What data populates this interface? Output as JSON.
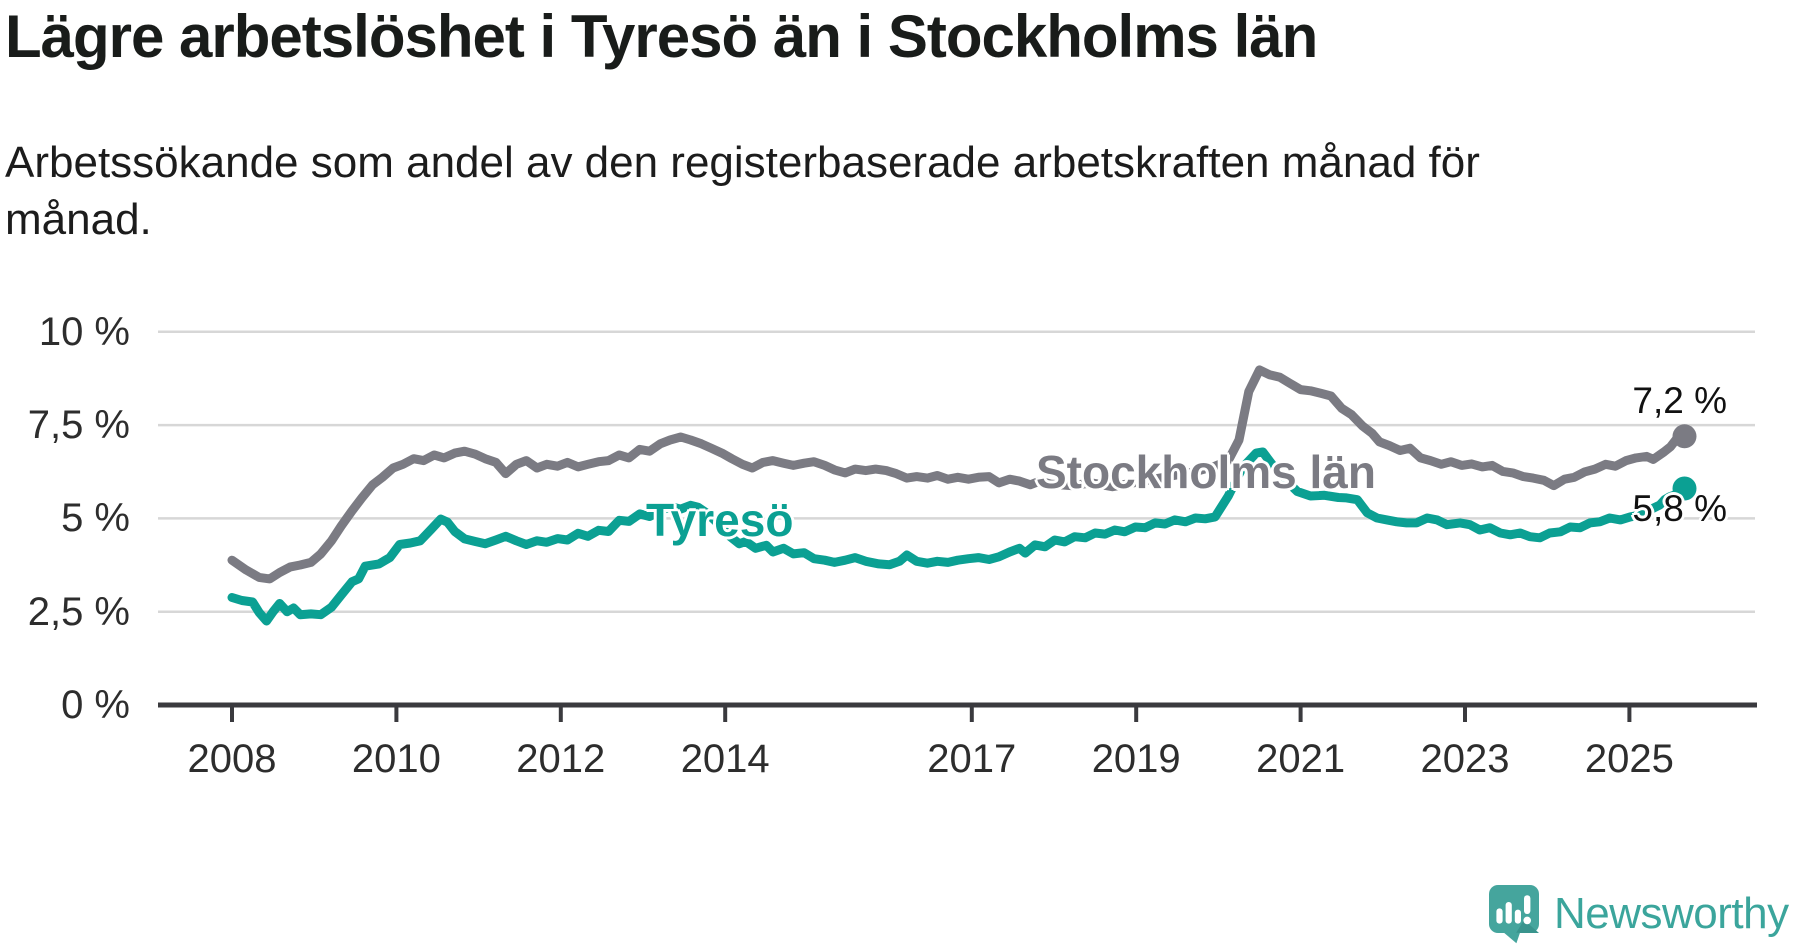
{
  "header": {
    "title": "Lägre arbetslöshet i Tyresö än i Stockholms län",
    "subtitle": "Arbetssökande som andel av den registerbaserade arbetskraften månad för månad."
  },
  "footer": {
    "brand": "Newsworthy"
  },
  "colors": {
    "tyreso": "#0ba093",
    "stockholm": "#7b7b83",
    "gridline": "#d7d7d7",
    "axis": "#3a3a3e",
    "text": "#191c1a",
    "brand_teal": "#3ba59c"
  },
  "chart_data": {
    "type": "line",
    "title": "Lägre arbetslöshet i Tyresö än i Stockholms län",
    "subtitle": "Arbetssökande som andel av den registerbaserade arbetskraften månad för månad.",
    "unit": "%",
    "grid": true,
    "legend_position": "inline-labels",
    "x_axis": {
      "ticks": [
        2008,
        2010,
        2012,
        2014,
        2017,
        2019,
        2021,
        2023,
        2025
      ],
      "range": [
        2007.1,
        2026.5
      ]
    },
    "y_axis": {
      "range": [
        0,
        10
      ],
      "ticks": [
        {
          "value": 10,
          "label": "10 %"
        },
        {
          "value": 7.5,
          "label": "7,5 %"
        },
        {
          "value": 5,
          "label": "5 %"
        },
        {
          "value": 2.5,
          "label": "2,5 %"
        },
        {
          "value": 0,
          "label": "0 %"
        }
      ]
    },
    "series": [
      {
        "name": "Tyresö",
        "label": "Tyresö",
        "color": "#0ba093",
        "end_label": "5,8 %",
        "end_value": 5.8,
        "points": [
          [
            2008.0,
            2.88
          ],
          [
            2008.12,
            2.8
          ],
          [
            2008.25,
            2.76
          ],
          [
            2008.33,
            2.48
          ],
          [
            2008.42,
            2.25
          ],
          [
            2008.5,
            2.5
          ],
          [
            2008.58,
            2.72
          ],
          [
            2008.67,
            2.5
          ],
          [
            2008.75,
            2.6
          ],
          [
            2008.83,
            2.42
          ],
          [
            2008.96,
            2.44
          ],
          [
            2009.08,
            2.42
          ],
          [
            2009.21,
            2.62
          ],
          [
            2009.33,
            2.95
          ],
          [
            2009.46,
            3.3
          ],
          [
            2009.54,
            3.38
          ],
          [
            2009.62,
            3.72
          ],
          [
            2009.79,
            3.78
          ],
          [
            2009.92,
            3.95
          ],
          [
            2010.04,
            4.3
          ],
          [
            2010.17,
            4.34
          ],
          [
            2010.29,
            4.4
          ],
          [
            2010.42,
            4.7
          ],
          [
            2010.54,
            4.98
          ],
          [
            2010.62,
            4.9
          ],
          [
            2010.71,
            4.65
          ],
          [
            2010.83,
            4.45
          ],
          [
            2010.96,
            4.38
          ],
          [
            2011.08,
            4.32
          ],
          [
            2011.21,
            4.42
          ],
          [
            2011.33,
            4.52
          ],
          [
            2011.46,
            4.4
          ],
          [
            2011.58,
            4.3
          ],
          [
            2011.71,
            4.4
          ],
          [
            2011.83,
            4.36
          ],
          [
            2011.96,
            4.46
          ],
          [
            2012.08,
            4.42
          ],
          [
            2012.21,
            4.6
          ],
          [
            2012.33,
            4.52
          ],
          [
            2012.46,
            4.68
          ],
          [
            2012.58,
            4.65
          ],
          [
            2012.71,
            4.95
          ],
          [
            2012.83,
            4.92
          ],
          [
            2012.96,
            5.12
          ],
          [
            2013.08,
            5.05
          ],
          [
            2013.21,
            5.2
          ],
          [
            2013.33,
            5.32
          ],
          [
            2013.46,
            5.25
          ],
          [
            2013.58,
            5.35
          ],
          [
            2013.67,
            5.3
          ],
          [
            2013.79,
            5.12
          ],
          [
            2013.92,
            4.85
          ],
          [
            2014.04,
            4.55
          ],
          [
            2014.17,
            4.32
          ],
          [
            2014.25,
            4.38
          ],
          [
            2014.37,
            4.2
          ],
          [
            2014.5,
            4.28
          ],
          [
            2014.58,
            4.1
          ],
          [
            2014.71,
            4.2
          ],
          [
            2014.83,
            4.05
          ],
          [
            2014.96,
            4.08
          ],
          [
            2015.08,
            3.92
          ],
          [
            2015.21,
            3.88
          ],
          [
            2015.33,
            3.82
          ],
          [
            2015.46,
            3.88
          ],
          [
            2015.58,
            3.95
          ],
          [
            2015.71,
            3.85
          ],
          [
            2015.87,
            3.78
          ],
          [
            2016.0,
            3.76
          ],
          [
            2016.12,
            3.85
          ],
          [
            2016.21,
            4.02
          ],
          [
            2016.33,
            3.85
          ],
          [
            2016.46,
            3.8
          ],
          [
            2016.58,
            3.85
          ],
          [
            2016.71,
            3.82
          ],
          [
            2016.83,
            3.88
          ],
          [
            2016.96,
            3.92
          ],
          [
            2017.08,
            3.95
          ],
          [
            2017.21,
            3.9
          ],
          [
            2017.33,
            3.97
          ],
          [
            2017.46,
            4.1
          ],
          [
            2017.58,
            4.2
          ],
          [
            2017.65,
            4.07
          ],
          [
            2017.77,
            4.29
          ],
          [
            2017.89,
            4.24
          ],
          [
            2018.01,
            4.42
          ],
          [
            2018.13,
            4.37
          ],
          [
            2018.25,
            4.51
          ],
          [
            2018.38,
            4.48
          ],
          [
            2018.5,
            4.61
          ],
          [
            2018.62,
            4.58
          ],
          [
            2018.74,
            4.69
          ],
          [
            2018.86,
            4.64
          ],
          [
            2018.99,
            4.77
          ],
          [
            2019.11,
            4.75
          ],
          [
            2019.23,
            4.88
          ],
          [
            2019.35,
            4.85
          ],
          [
            2019.47,
            4.96
          ],
          [
            2019.6,
            4.91
          ],
          [
            2019.72,
            5.01
          ],
          [
            2019.84,
            4.99
          ],
          [
            2019.96,
            5.04
          ],
          [
            2020.12,
            5.6
          ],
          [
            2020.29,
            6.35
          ],
          [
            2020.46,
            6.75
          ],
          [
            2020.54,
            6.78
          ],
          [
            2020.67,
            6.4
          ],
          [
            2020.83,
            6.0
          ],
          [
            2020.96,
            5.72
          ],
          [
            2021.12,
            5.6
          ],
          [
            2021.29,
            5.62
          ],
          [
            2021.46,
            5.56
          ],
          [
            2021.56,
            5.55
          ],
          [
            2021.69,
            5.5
          ],
          [
            2021.81,
            5.15
          ],
          [
            2021.93,
            5.01
          ],
          [
            2022.05,
            4.96
          ],
          [
            2022.17,
            4.91
          ],
          [
            2022.29,
            4.88
          ],
          [
            2022.41,
            4.88
          ],
          [
            2022.54,
            5.01
          ],
          [
            2022.66,
            4.96
          ],
          [
            2022.78,
            4.83
          ],
          [
            2022.94,
            4.88
          ],
          [
            2023.06,
            4.83
          ],
          [
            2023.18,
            4.69
          ],
          [
            2023.3,
            4.75
          ],
          [
            2023.43,
            4.61
          ],
          [
            2023.55,
            4.56
          ],
          [
            2023.67,
            4.61
          ],
          [
            2023.79,
            4.51
          ],
          [
            2023.91,
            4.48
          ],
          [
            2024.03,
            4.61
          ],
          [
            2024.16,
            4.64
          ],
          [
            2024.28,
            4.77
          ],
          [
            2024.4,
            4.75
          ],
          [
            2024.52,
            4.88
          ],
          [
            2024.64,
            4.91
          ],
          [
            2024.76,
            5.01
          ],
          [
            2024.89,
            4.96
          ],
          [
            2025.01,
            5.04
          ],
          [
            2025.13,
            5.09
          ],
          [
            2025.25,
            5.23
          ],
          [
            2025.37,
            5.36
          ],
          [
            2025.43,
            5.5
          ],
          [
            2025.49,
            5.58
          ],
          [
            2025.55,
            5.63
          ],
          [
            2025.61,
            5.58
          ],
          [
            2025.67,
            5.8
          ]
        ]
      },
      {
        "name": "Stockholms län",
        "label": "Stockholms län",
        "color": "#7b7b83",
        "end_label": "7,2 %",
        "end_value": 7.2,
        "points": [
          [
            2008.0,
            3.88
          ],
          [
            2008.17,
            3.62
          ],
          [
            2008.33,
            3.42
          ],
          [
            2008.46,
            3.38
          ],
          [
            2008.58,
            3.55
          ],
          [
            2008.71,
            3.7
          ],
          [
            2008.83,
            3.75
          ],
          [
            2008.96,
            3.82
          ],
          [
            2009.08,
            4.05
          ],
          [
            2009.21,
            4.4
          ],
          [
            2009.33,
            4.8
          ],
          [
            2009.46,
            5.2
          ],
          [
            2009.58,
            5.55
          ],
          [
            2009.71,
            5.9
          ],
          [
            2009.83,
            6.1
          ],
          [
            2009.96,
            6.35
          ],
          [
            2010.08,
            6.45
          ],
          [
            2010.21,
            6.6
          ],
          [
            2010.33,
            6.55
          ],
          [
            2010.46,
            6.7
          ],
          [
            2010.58,
            6.62
          ],
          [
            2010.71,
            6.75
          ],
          [
            2010.83,
            6.8
          ],
          [
            2010.96,
            6.72
          ],
          [
            2011.08,
            6.6
          ],
          [
            2011.21,
            6.5
          ],
          [
            2011.33,
            6.2
          ],
          [
            2011.46,
            6.45
          ],
          [
            2011.58,
            6.55
          ],
          [
            2011.71,
            6.35
          ],
          [
            2011.83,
            6.45
          ],
          [
            2011.96,
            6.4
          ],
          [
            2012.08,
            6.5
          ],
          [
            2012.21,
            6.38
          ],
          [
            2012.33,
            6.45
          ],
          [
            2012.46,
            6.52
          ],
          [
            2012.58,
            6.55
          ],
          [
            2012.71,
            6.7
          ],
          [
            2012.83,
            6.62
          ],
          [
            2012.96,
            6.85
          ],
          [
            2013.08,
            6.8
          ],
          [
            2013.21,
            7.0
          ],
          [
            2013.33,
            7.1
          ],
          [
            2013.46,
            7.18
          ],
          [
            2013.58,
            7.1
          ],
          [
            2013.71,
            7.0
          ],
          [
            2013.83,
            6.88
          ],
          [
            2013.96,
            6.75
          ],
          [
            2014.08,
            6.6
          ],
          [
            2014.21,
            6.45
          ],
          [
            2014.33,
            6.35
          ],
          [
            2014.46,
            6.5
          ],
          [
            2014.58,
            6.55
          ],
          [
            2014.71,
            6.48
          ],
          [
            2014.83,
            6.42
          ],
          [
            2014.96,
            6.48
          ],
          [
            2015.08,
            6.52
          ],
          [
            2015.21,
            6.42
          ],
          [
            2015.33,
            6.3
          ],
          [
            2015.46,
            6.22
          ],
          [
            2015.58,
            6.32
          ],
          [
            2015.71,
            6.28
          ],
          [
            2015.83,
            6.32
          ],
          [
            2015.96,
            6.28
          ],
          [
            2016.08,
            6.2
          ],
          [
            2016.21,
            6.08
          ],
          [
            2016.33,
            6.12
          ],
          [
            2016.46,
            6.08
          ],
          [
            2016.58,
            6.15
          ],
          [
            2016.71,
            6.05
          ],
          [
            2016.83,
            6.1
          ],
          [
            2016.96,
            6.05
          ],
          [
            2017.08,
            6.1
          ],
          [
            2017.21,
            6.12
          ],
          [
            2017.33,
            5.95
          ],
          [
            2017.46,
            6.05
          ],
          [
            2017.58,
            6.0
          ],
          [
            2017.71,
            5.9
          ],
          [
            2017.83,
            6.0
          ],
          [
            2017.96,
            5.92
          ],
          [
            2018.21,
            5.88
          ],
          [
            2018.46,
            5.95
          ],
          [
            2018.71,
            5.85
          ],
          [
            2018.96,
            5.95
          ],
          [
            2019.21,
            6.05
          ],
          [
            2019.46,
            6.15
          ],
          [
            2019.71,
            6.25
          ],
          [
            2019.96,
            6.4
          ],
          [
            2020.12,
            6.55
          ],
          [
            2020.25,
            7.1
          ],
          [
            2020.37,
            8.4
          ],
          [
            2020.5,
            8.98
          ],
          [
            2020.62,
            8.85
          ],
          [
            2020.75,
            8.78
          ],
          [
            2020.87,
            8.62
          ],
          [
            2021.0,
            8.45
          ],
          [
            2021.12,
            8.42
          ],
          [
            2021.25,
            8.35
          ],
          [
            2021.37,
            8.28
          ],
          [
            2021.5,
            7.95
          ],
          [
            2021.62,
            7.78
          ],
          [
            2021.75,
            7.48
          ],
          [
            2021.87,
            7.28
          ],
          [
            2021.96,
            7.05
          ],
          [
            2022.08,
            6.95
          ],
          [
            2022.21,
            6.82
          ],
          [
            2022.33,
            6.88
          ],
          [
            2022.46,
            6.62
          ],
          [
            2022.58,
            6.55
          ],
          [
            2022.71,
            6.45
          ],
          [
            2022.83,
            6.52
          ],
          [
            2022.96,
            6.42
          ],
          [
            2023.08,
            6.46
          ],
          [
            2023.21,
            6.38
          ],
          [
            2023.33,
            6.42
          ],
          [
            2023.46,
            6.26
          ],
          [
            2023.58,
            6.22
          ],
          [
            2023.71,
            6.12
          ],
          [
            2023.83,
            6.08
          ],
          [
            2023.96,
            6.02
          ],
          [
            2024.08,
            5.88
          ],
          [
            2024.21,
            6.05
          ],
          [
            2024.33,
            6.1
          ],
          [
            2024.46,
            6.25
          ],
          [
            2024.58,
            6.32
          ],
          [
            2024.71,
            6.45
          ],
          [
            2024.83,
            6.4
          ],
          [
            2024.96,
            6.55
          ],
          [
            2025.08,
            6.62
          ],
          [
            2025.21,
            6.66
          ],
          [
            2025.29,
            6.58
          ],
          [
            2025.42,
            6.78
          ],
          [
            2025.5,
            6.92
          ],
          [
            2025.58,
            7.15
          ],
          [
            2025.67,
            7.2
          ]
        ]
      }
    ]
  }
}
